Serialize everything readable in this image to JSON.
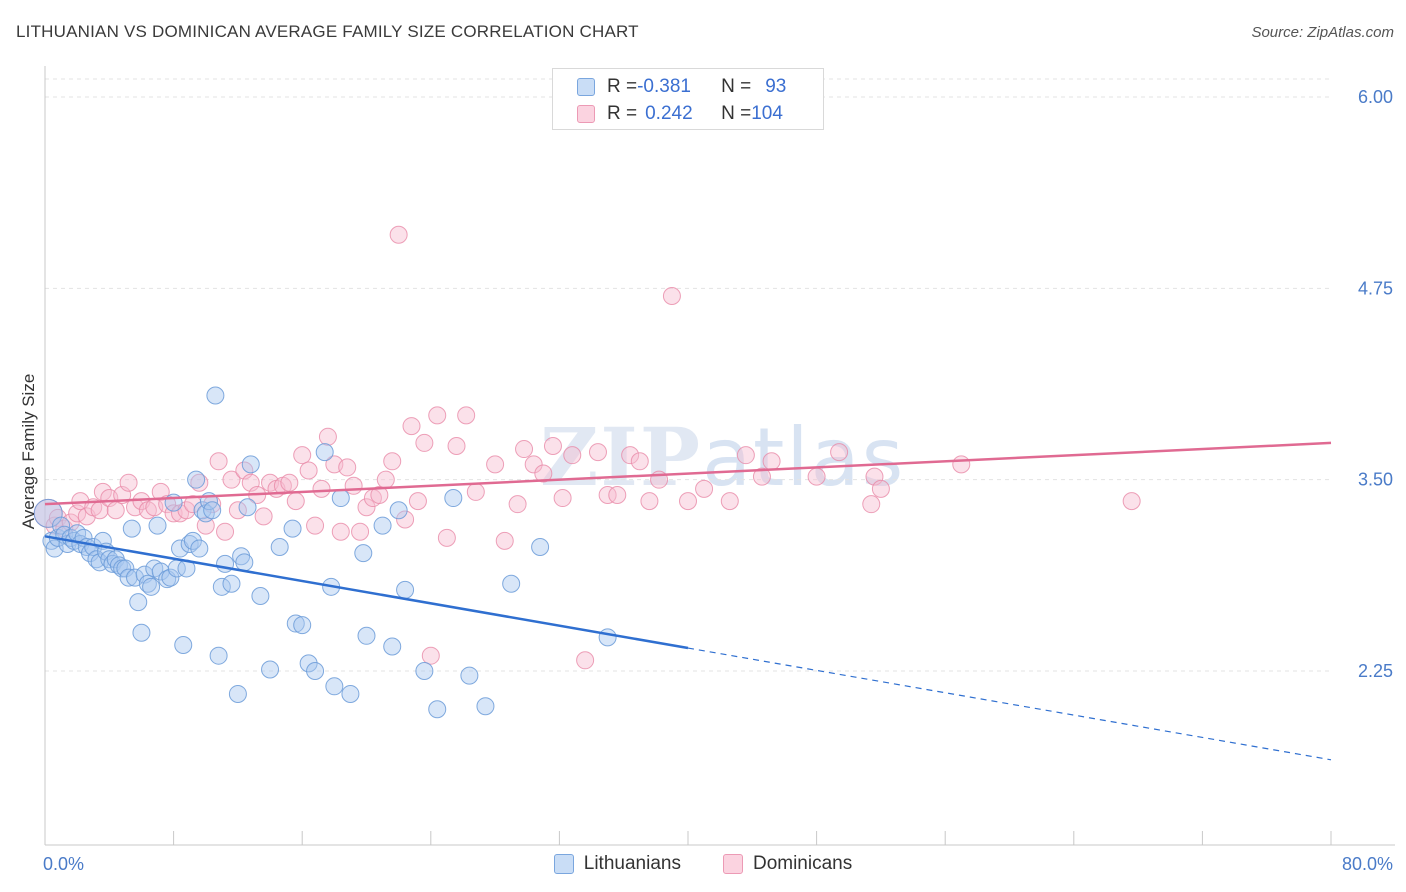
{
  "title": "LITHUANIAN VS DOMINICAN AVERAGE FAMILY SIZE CORRELATION CHART",
  "source": "Source: ZipAtlas.com",
  "watermark": {
    "bold": "ZIP",
    "thin": "atlas"
  },
  "legend": {
    "rows": [
      {
        "r_label": "R = ",
        "r_value": "-0.381",
        "n_label": "N = ",
        "n_value": "93",
        "color": "#a9c8f0"
      },
      {
        "r_label": "R = ",
        "r_value": "0.242",
        "n_label": "N = ",
        "n_value": "104",
        "color": "#f7bcd0"
      }
    ]
  },
  "bottom_legend": [
    "Lithuanians",
    "Dominicans"
  ],
  "colors": {
    "blue_fill": "#a9c8f0",
    "blue_stroke": "#6b9bd8",
    "blue_line": "#2f6fd0",
    "pink_fill": "#f7bcd0",
    "pink_stroke": "#e88aa8",
    "pink_line": "#e06a92",
    "grid": "#e3e3e3",
    "tick_text": "#4a7bc8"
  },
  "chart_data": {
    "type": "scatter",
    "title": "LITHUANIAN VS DOMINICAN AVERAGE FAMILY SIZE CORRELATION CHART",
    "xlabel": "",
    "ylabel": "Average Family Size",
    "xlim": [
      0,
      80
    ],
    "ylim": [
      1.0,
      6.2
    ],
    "x_tick_labels": [
      "0.0%",
      "80.0%"
    ],
    "y_ticks": [
      2.25,
      3.5,
      4.75,
      6.0
    ],
    "y_tick_labels": [
      "2.25",
      "3.50",
      "4.75",
      "6.00"
    ],
    "grid": true,
    "series": [
      {
        "name": "Lithuanians",
        "trend": {
          "x0": 0,
          "y0": 3.13,
          "x1": 40,
          "y1": 2.4,
          "dashed_to_x": 80,
          "dashed_to_y": 1.67
        },
        "points": [
          [
            0.2,
            3.28
          ],
          [
            0.4,
            3.1
          ],
          [
            0.6,
            3.05
          ],
          [
            0.8,
            3.12
          ],
          [
            1.0,
            3.2
          ],
          [
            1.2,
            3.14
          ],
          [
            1.4,
            3.08
          ],
          [
            1.6,
            3.12
          ],
          [
            1.8,
            3.1
          ],
          [
            2.0,
            3.15
          ],
          [
            2.2,
            3.08
          ],
          [
            2.4,
            3.12
          ],
          [
            2.6,
            3.06
          ],
          [
            2.8,
            3.02
          ],
          [
            3.0,
            3.06
          ],
          [
            3.2,
            2.98
          ],
          [
            3.4,
            2.96
          ],
          [
            3.6,
            3.1
          ],
          [
            3.8,
            3.03
          ],
          [
            4.0,
            2.98
          ],
          [
            4.2,
            2.95
          ],
          [
            4.4,
            2.98
          ],
          [
            4.6,
            2.94
          ],
          [
            4.8,
            2.92
          ],
          [
            5.0,
            2.92
          ],
          [
            5.2,
            2.86
          ],
          [
            5.4,
            3.18
          ],
          [
            5.6,
            2.86
          ],
          [
            5.8,
            2.7
          ],
          [
            6.0,
            2.5
          ],
          [
            6.2,
            2.88
          ],
          [
            6.4,
            2.82
          ],
          [
            6.6,
            2.8
          ],
          [
            6.8,
            2.92
          ],
          [
            7.0,
            3.2
          ],
          [
            7.2,
            2.9
          ],
          [
            7.6,
            2.85
          ],
          [
            7.8,
            2.86
          ],
          [
            8.0,
            3.35
          ],
          [
            8.2,
            2.92
          ],
          [
            8.4,
            3.05
          ],
          [
            8.6,
            2.42
          ],
          [
            8.8,
            2.92
          ],
          [
            9.0,
            3.08
          ],
          [
            9.2,
            3.1
          ],
          [
            9.4,
            3.5
          ],
          [
            9.6,
            3.05
          ],
          [
            9.8,
            3.3
          ],
          [
            10.0,
            3.28
          ],
          [
            10.2,
            3.36
          ],
          [
            10.4,
            3.3
          ],
          [
            10.6,
            4.05
          ],
          [
            10.8,
            2.35
          ],
          [
            11.0,
            2.8
          ],
          [
            11.2,
            2.95
          ],
          [
            11.6,
            2.82
          ],
          [
            12.0,
            2.1
          ],
          [
            12.2,
            3.0
          ],
          [
            12.4,
            2.96
          ],
          [
            12.6,
            3.32
          ],
          [
            12.8,
            3.6
          ],
          [
            13.4,
            2.74
          ],
          [
            14.0,
            2.26
          ],
          [
            14.6,
            3.06
          ],
          [
            15.4,
            3.18
          ],
          [
            15.6,
            2.56
          ],
          [
            16.0,
            2.55
          ],
          [
            16.4,
            2.3
          ],
          [
            16.8,
            2.25
          ],
          [
            17.4,
            3.68
          ],
          [
            17.8,
            2.8
          ],
          [
            18.0,
            2.15
          ],
          [
            18.4,
            3.38
          ],
          [
            19.0,
            2.1
          ],
          [
            19.8,
            3.02
          ],
          [
            20.0,
            2.48
          ],
          [
            21.0,
            3.2
          ],
          [
            21.6,
            2.41
          ],
          [
            22.0,
            3.3
          ],
          [
            22.4,
            2.78
          ],
          [
            23.6,
            2.25
          ],
          [
            24.4,
            2.0
          ],
          [
            25.4,
            3.38
          ],
          [
            26.4,
            2.22
          ],
          [
            27.4,
            2.02
          ],
          [
            29.0,
            2.82
          ],
          [
            30.8,
            3.06
          ],
          [
            35.0,
            2.47
          ]
        ]
      },
      {
        "name": "Dominicans",
        "trend": {
          "x0": 0,
          "y0": 3.34,
          "x1": 80,
          "y1": 3.74
        },
        "points": [
          [
            0.2,
            3.28
          ],
          [
            0.6,
            3.2
          ],
          [
            0.8,
            3.25
          ],
          [
            1.2,
            3.18
          ],
          [
            1.6,
            3.22
          ],
          [
            2.0,
            3.28
          ],
          [
            2.2,
            3.36
          ],
          [
            2.6,
            3.26
          ],
          [
            3.0,
            3.32
          ],
          [
            3.4,
            3.3
          ],
          [
            3.6,
            3.42
          ],
          [
            4.0,
            3.38
          ],
          [
            4.4,
            3.3
          ],
          [
            4.8,
            3.4
          ],
          [
            5.2,
            3.48
          ],
          [
            5.6,
            3.32
          ],
          [
            6.0,
            3.36
          ],
          [
            6.4,
            3.3
          ],
          [
            6.8,
            3.32
          ],
          [
            7.2,
            3.42
          ],
          [
            7.6,
            3.34
          ],
          [
            8.0,
            3.28
          ],
          [
            8.4,
            3.28
          ],
          [
            8.8,
            3.3
          ],
          [
            9.2,
            3.34
          ],
          [
            9.6,
            3.48
          ],
          [
            10.0,
            3.2
          ],
          [
            10.4,
            3.34
          ],
          [
            10.8,
            3.62
          ],
          [
            11.2,
            3.16
          ],
          [
            11.6,
            3.5
          ],
          [
            12.0,
            3.3
          ],
          [
            12.4,
            3.56
          ],
          [
            12.8,
            3.48
          ],
          [
            13.2,
            3.4
          ],
          [
            13.6,
            3.26
          ],
          [
            14.0,
            3.48
          ],
          [
            14.4,
            3.44
          ],
          [
            14.8,
            3.46
          ],
          [
            15.2,
            3.48
          ],
          [
            15.6,
            3.36
          ],
          [
            16.0,
            3.66
          ],
          [
            16.4,
            3.56
          ],
          [
            16.8,
            3.2
          ],
          [
            17.2,
            3.44
          ],
          [
            17.6,
            3.78
          ],
          [
            18.0,
            3.6
          ],
          [
            18.4,
            3.16
          ],
          [
            18.8,
            3.58
          ],
          [
            19.2,
            3.46
          ],
          [
            19.6,
            3.16
          ],
          [
            20.0,
            3.32
          ],
          [
            20.4,
            3.38
          ],
          [
            20.8,
            3.4
          ],
          [
            21.2,
            3.5
          ],
          [
            21.6,
            3.62
          ],
          [
            22.0,
            5.1
          ],
          [
            22.4,
            3.24
          ],
          [
            22.8,
            3.85
          ],
          [
            23.2,
            3.36
          ],
          [
            23.6,
            3.74
          ],
          [
            24.0,
            2.35
          ],
          [
            24.4,
            3.92
          ],
          [
            25.0,
            3.12
          ],
          [
            25.6,
            3.72
          ],
          [
            26.2,
            3.92
          ],
          [
            26.8,
            3.42
          ],
          [
            28.0,
            3.6
          ],
          [
            28.6,
            3.1
          ],
          [
            29.4,
            3.34
          ],
          [
            29.8,
            3.7
          ],
          [
            30.4,
            3.6
          ],
          [
            31.0,
            3.54
          ],
          [
            31.6,
            3.72
          ],
          [
            32.2,
            3.38
          ],
          [
            32.8,
            3.66
          ],
          [
            33.6,
            2.32
          ],
          [
            34.4,
            3.68
          ],
          [
            35.0,
            3.4
          ],
          [
            35.6,
            3.4
          ],
          [
            36.4,
            3.66
          ],
          [
            37.0,
            3.62
          ],
          [
            37.6,
            3.36
          ],
          [
            38.2,
            3.5
          ],
          [
            39.0,
            4.7
          ],
          [
            40.0,
            3.36
          ],
          [
            41.0,
            3.44
          ],
          [
            42.6,
            3.36
          ],
          [
            43.6,
            3.66
          ],
          [
            44.6,
            3.52
          ],
          [
            45.2,
            3.62
          ],
          [
            48.0,
            3.52
          ],
          [
            49.4,
            3.68
          ],
          [
            51.4,
            3.34
          ],
          [
            51.6,
            3.52
          ],
          [
            52.0,
            3.44
          ],
          [
            57.0,
            3.6
          ],
          [
            67.6,
            3.36
          ]
        ]
      }
    ]
  }
}
